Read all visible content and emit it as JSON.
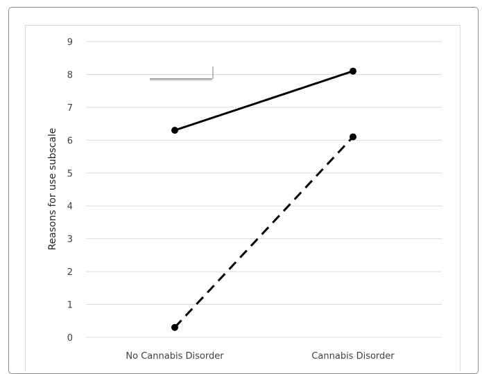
{
  "chart_data": {
    "type": "line",
    "title": "",
    "xlabel": "",
    "ylabel": "Reasons for use subscale",
    "categories": [
      "No Cannabis Disorder",
      "Cannabis Disorder"
    ],
    "ylim": [
      0,
      9
    ],
    "yticks": [
      0,
      1,
      2,
      3,
      4,
      5,
      6,
      7,
      8,
      9
    ],
    "grid": true,
    "legend": "none",
    "series": [
      {
        "style": "solid",
        "color": "#000000",
        "values": [
          6.3,
          8.1
        ]
      },
      {
        "style": "dashed",
        "color": "#000000",
        "values": [
          0.3,
          6.1
        ]
      }
    ]
  }
}
